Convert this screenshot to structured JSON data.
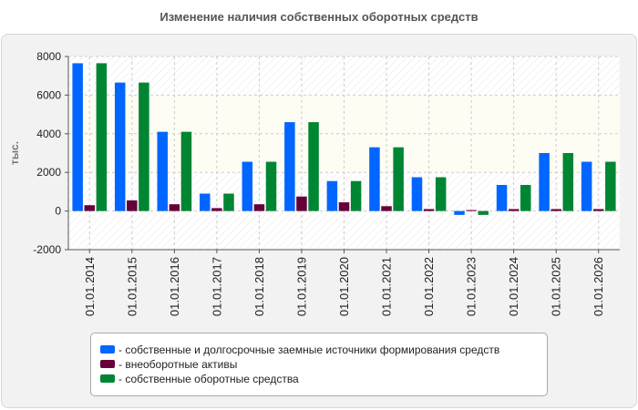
{
  "chart_data": {
    "type": "bar",
    "title": "Изменение наличия собственных оборотных средств",
    "ylabel": "тыс.",
    "xlabel": "",
    "ylim": [
      -2000,
      8000
    ],
    "yticks": [
      -2000,
      0,
      2000,
      4000,
      6000,
      8000
    ],
    "grid": true,
    "legend_position": "bottom",
    "categories": [
      "01.01.2014",
      "01.01.2015",
      "01.01.2016",
      "01.01.2017",
      "01.01.2018",
      "01.01.2019",
      "01.01.2020",
      "01.01.2021",
      "01.01.2022",
      "01.01.2023",
      "01.01.2024",
      "01.01.2025",
      "01.01.2026"
    ],
    "series": [
      {
        "name": "- собственные и долгосрочные заемные источники формирования средств",
        "color": "#0066ff",
        "values": [
          7650,
          6650,
          4100,
          900,
          2550,
          4600,
          1550,
          3300,
          1750,
          -200,
          1350,
          3000,
          2550
        ]
      },
      {
        "name": "- внеоборотные активы",
        "color": "#66003a",
        "values": [
          300,
          550,
          350,
          150,
          350,
          750,
          450,
          250,
          100,
          50,
          100,
          100,
          100
        ]
      },
      {
        "name": "- собственные оборотные средства",
        "color": "#008533",
        "values": [
          7650,
          6650,
          4100,
          900,
          2550,
          4600,
          1550,
          3300,
          1750,
          -200,
          1350,
          3000,
          2550
        ]
      }
    ]
  }
}
